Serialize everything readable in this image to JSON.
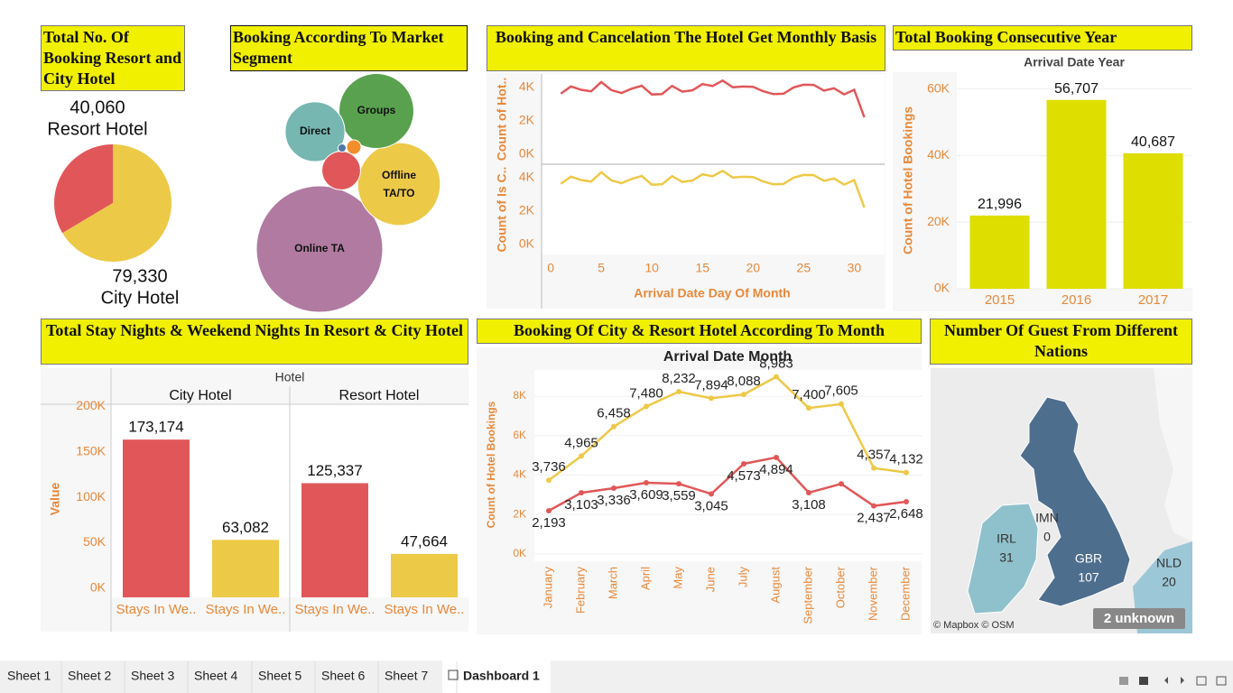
{
  "tabs": [
    "Sheet 1",
    "Sheet 2",
    "Sheet 3",
    "Sheet 4",
    "Sheet 5",
    "Sheet 6",
    "Sheet 7",
    "Dashboard 1"
  ],
  "chart_data": [
    {
      "type": "pie",
      "title": "Total No. Of Booking Resort and City Hotel",
      "categories": [
        "Resort Hotel",
        "City Hotel"
      ],
      "values": [
        40060,
        79330
      ],
      "value_labels": [
        "40,060",
        "79,330"
      ],
      "colors": [
        "#e15759",
        "#edc948"
      ]
    },
    {
      "type": "bubble",
      "title": "Booking According To Market Segment",
      "categories": [
        "Online TA",
        "Offline TA/TO",
        "Groups",
        "Direct",
        null,
        null,
        null
      ],
      "values": [
        56477,
        24219,
        19811,
        12606,
        5295,
        743,
        237
      ],
      "colors": [
        "#b07aa1",
        "#edc948",
        "#59a14f",
        "#76b7b2",
        "#e15759",
        "#f28e2b",
        "#4e79a7"
      ]
    },
    {
      "type": "line-panels",
      "title": "Booking and Cancelation The Hotel Get Monthly Basis",
      "x": [
        1,
        2,
        3,
        4,
        5,
        6,
        7,
        8,
        9,
        10,
        11,
        12,
        13,
        14,
        15,
        16,
        17,
        18,
        19,
        20,
        21,
        22,
        23,
        24,
        25,
        26,
        27,
        28,
        29,
        30,
        31
      ],
      "xlabel": "Arrival Date Day Of Month",
      "xlim": [
        -0.9,
        33
      ],
      "xticks": [
        0,
        5,
        10,
        15,
        20,
        25,
        30
      ],
      "ylim": [
        -600,
        4800
      ],
      "yticks": [
        {
          "value": 0,
          "label": "0K"
        },
        {
          "value": 2000,
          "label": "2K"
        },
        {
          "value": 4000,
          "label": "4K"
        }
      ],
      "series": [
        {
          "name": "Count of Hot..",
          "color": "#e15759",
          "values": [
            3626,
            4055,
            3855,
            3763,
            4317,
            3833,
            3665,
            3921,
            4096,
            3575,
            3599,
            4087,
            3745,
            3819,
            4196,
            4078,
            4406,
            4002,
            4052,
            4032,
            3767,
            3596,
            3616,
            3993,
            4160,
            4147,
            3802,
            3946,
            3580,
            3853,
            2208
          ]
        },
        {
          "name": "Count of Is C..",
          "color": "#edc948",
          "values": [
            3626,
            4055,
            3855,
            3763,
            4317,
            3833,
            3665,
            3921,
            4096,
            3575,
            3599,
            4087,
            3745,
            3819,
            4196,
            4078,
            4406,
            4002,
            4052,
            4032,
            3767,
            3596,
            3616,
            3993,
            4160,
            4147,
            3802,
            3946,
            3580,
            3853,
            2208
          ]
        }
      ]
    },
    {
      "type": "bar",
      "title": "Total Booking Consecutive Year",
      "subtitle": "Arrival Date Year",
      "ylabel": "Count of Hotel Bookings",
      "categories": [
        "2015",
        "2016",
        "2017"
      ],
      "values": [
        21996,
        56707,
        40687
      ],
      "value_labels": [
        "21,996",
        "56,707",
        "40,687"
      ],
      "color": "#dede00",
      "ylim": [
        0,
        64500
      ],
      "grid": true,
      "yticks": [
        {
          "value": 0,
          "label": "0K"
        },
        {
          "value": 20000,
          "label": "20K"
        },
        {
          "value": 40000,
          "label": "40K"
        },
        {
          "value": 60000,
          "label": "60K"
        }
      ]
    },
    {
      "type": "grouped-bar",
      "title": "Total Stay Nights & Weekend Nights In Resort & City Hotel",
      "header": "Hotel",
      "ylabel": "Value",
      "colors": [
        "#e15759",
        "#edc948"
      ],
      "panels": [
        {
          "name": "City Hotel",
          "categories": [
            "Stays In We..",
            "Stays In We.."
          ],
          "values": [
            173174,
            63082
          ],
          "value_labels": [
            "173,174",
            "63,082"
          ]
        },
        {
          "name": "Resort Hotel",
          "categories": [
            "Stays In We..",
            "Stays In We.."
          ],
          "values": [
            125337,
            47664
          ],
          "value_labels": [
            "125,337",
            "47,664"
          ]
        }
      ],
      "ylim": [
        0,
        212000
      ],
      "yticks": [
        {
          "value": 0,
          "label": "0K"
        },
        {
          "value": 50000,
          "label": "50K"
        },
        {
          "value": 100000,
          "label": "100K"
        },
        {
          "value": 150000,
          "label": "150K"
        },
        {
          "value": 200000,
          "label": "200K"
        }
      ]
    },
    {
      "type": "line",
      "title": "Booking Of City & Resort Hotel According To Month",
      "subtitle": "Arrival Date Month",
      "ylabel": "Count of Hotel Bookings",
      "categories": [
        "January",
        "February",
        "March",
        "April",
        "May",
        "June",
        "July",
        "August",
        "September",
        "October",
        "November",
        "December"
      ],
      "ylim": [
        -370,
        9330
      ],
      "grid": true,
      "yticks": [
        {
          "value": 0,
          "label": "0K"
        },
        {
          "value": 2000,
          "label": "2K"
        },
        {
          "value": 4000,
          "label": "4K"
        },
        {
          "value": 6000,
          "label": "6K"
        },
        {
          "value": 8000,
          "label": "8K"
        }
      ],
      "series": [
        {
          "color": "#edc948",
          "values": [
            3736,
            4965,
            6458,
            7480,
            8232,
            7894,
            8088,
            8983,
            7400,
            7605,
            4357,
            4132
          ],
          "value_labels": [
            "3,736",
            "4,965",
            "6,458",
            "7,480",
            "8,232",
            "7,894",
            "8,088",
            "8,983",
            "7,400",
            "7,605",
            "4,357",
            "4,132"
          ]
        },
        {
          "color": "#e15759",
          "values": [
            2193,
            3103,
            3336,
            3609,
            3559,
            3045,
            4573,
            4894,
            3108,
            3555,
            2437,
            2648
          ],
          "value_labels": [
            "2,193",
            "3,103",
            "3,336",
            "3,609",
            "3,559",
            "3,045",
            "4,573",
            "4,894",
            "3,108",
            null,
            "2,437",
            "2,648"
          ]
        }
      ]
    },
    {
      "type": "map",
      "title": "Number Of Guest From Different Nations",
      "locations": [
        {
          "code": "IRL",
          "value": 31
        },
        {
          "code": "IMN",
          "value": 0
        },
        {
          "code": "GBR",
          "value": 107
        },
        {
          "code": "NLD",
          "value": 20
        }
      ],
      "attribution": "© Mapbox © OSM",
      "unknown": "2 unknown"
    }
  ]
}
